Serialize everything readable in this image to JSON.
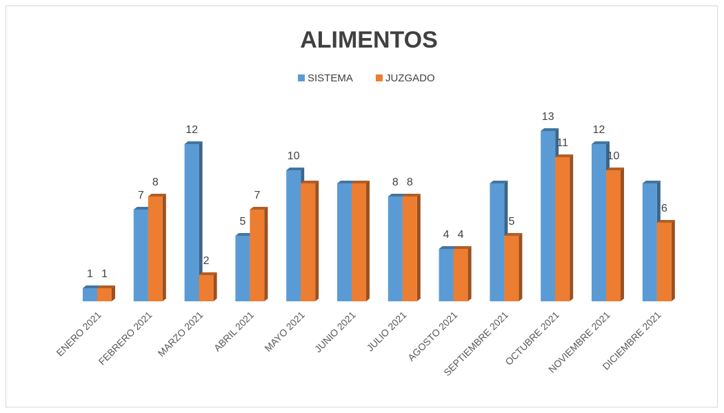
{
  "chart_data": {
    "type": "bar",
    "title": "ALIMENTOS",
    "categories": [
      "ENERO 2021",
      "FEBRERO 2021",
      "MARZO 2021",
      "ABRIL 2021",
      "MAYO 2021",
      "JUNIO 2021",
      "JULIO 2021",
      "AGOSTO 2021",
      "SEPTIEMBRE 2021",
      "OCTUBRE 2021",
      "NOVIEMBRE 2021",
      "DICIEMBRE 2021"
    ],
    "series": [
      {
        "name": "SISTEMA",
        "color": "#5b9bd5",
        "values": [
          1,
          7,
          12,
          5,
          10,
          9,
          8,
          4,
          9,
          13,
          12,
          9
        ],
        "value_labels": [
          "1",
          "7",
          "12",
          "5",
          "10",
          null,
          "8",
          "4",
          null,
          "13",
          "12",
          null
        ]
      },
      {
        "name": "JUZGADO",
        "color": "#ed7d31",
        "values": [
          1,
          8,
          2,
          7,
          9,
          9,
          8,
          4,
          5,
          11,
          10,
          6
        ],
        "value_labels": [
          "1",
          "8",
          "2",
          "7",
          null,
          null,
          "8",
          "4",
          "5",
          "11",
          "10",
          "6"
        ]
      }
    ],
    "legend": "top"
  }
}
